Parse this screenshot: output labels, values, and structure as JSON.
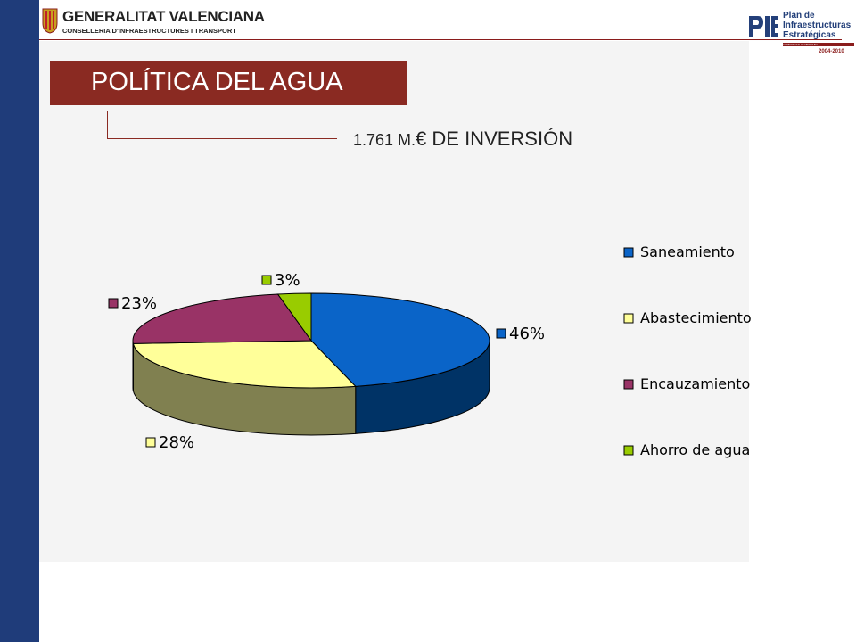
{
  "header": {
    "org_name": "GENERALITAT VALENCIANA",
    "org_department": "CONSELLERIA D'INFRAESTRUCTURES I TRANSPORT",
    "plan_logo_lines": [
      "Plan de",
      "Infraestructuras",
      "Estratégicas"
    ],
    "plan_region": "COMUNIDAD VALENCIANA",
    "plan_years": "2004-2010"
  },
  "slide": {
    "title": "POLÍTICA DEL AGUA",
    "investment_amount": "1.761 M.",
    "investment_label": "€ DE INVERSIÓN"
  },
  "colors": {
    "left_band": "#1f3c7a",
    "title_box": "#8a2a22",
    "saneamiento": "#0a64c8",
    "abastecimiento": "#ffff99",
    "encauzamiento": "#993366",
    "ahorro": "#99cc00"
  },
  "chart_data": {
    "type": "pie",
    "three_d": true,
    "labels": [
      "Saneamiento",
      "Abastecimiento",
      "Encauzamiento",
      "Ahorro de agua"
    ],
    "values": [
      46,
      28,
      23,
      3
    ],
    "data_labels": [
      "46%",
      "28%",
      "23%",
      "3%"
    ],
    "colors": [
      "#0a64c8",
      "#ffff99",
      "#993366",
      "#99cc00"
    ],
    "side_colors": [
      "#003366",
      "#808050",
      "#808050",
      "#808050"
    ],
    "legend_position": "right"
  }
}
